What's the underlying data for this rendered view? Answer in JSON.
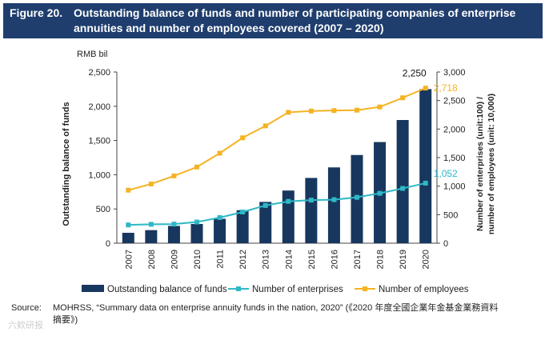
{
  "header": {
    "figure_number": "Figure 20.",
    "title_line1": "Outstanding balance of funds and number of participating companies of enterprise",
    "title_line2": "annuities and number of employees covered (2007 – 2020)"
  },
  "chart_data": {
    "type": "bar",
    "categories": [
      "2007",
      "2008",
      "2009",
      "2010",
      "2011",
      "2012",
      "2013",
      "2014",
      "2015",
      "2016",
      "2017",
      "2018",
      "2019",
      "2020"
    ],
    "series": [
      {
        "name": "Outstanding balance of funds",
        "kind": "bar",
        "axis": "left",
        "color": "#17375e",
        "values": [
          152,
          191,
          253,
          281,
          357,
          482,
          603,
          769,
          953,
          1107,
          1288,
          1477,
          1799,
          2250
        ]
      },
      {
        "name": "Number of enterprises",
        "kind": "line",
        "axis": "right",
        "color": "#2fb8c6",
        "values": [
          320,
          331,
          335,
          371,
          449,
          547,
          661,
          733,
          755,
          763,
          804,
          874,
          960,
          1052
        ]
      },
      {
        "name": "Number of employees",
        "kind": "line",
        "axis": "right",
        "color": "#f5b324",
        "values": [
          929,
          1038,
          1179,
          1335,
          1577,
          1847,
          2056,
          2293,
          2316,
          2325,
          2331,
          2388,
          2548,
          2718
        ]
      }
    ],
    "left_axis": {
      "unit_label": "RMB bil",
      "label": "Outstanding balance of funds",
      "min": 0,
      "max": 2500,
      "ticks": [
        "0",
        "500",
        "1,000",
        "1,500",
        "2,000",
        "2,500"
      ]
    },
    "right_axis": {
      "label_line1": "Number of enterprises (unit:100) /",
      "label_line2": "number of  employees (unit: 10,000)",
      "min": 0,
      "max": 3000,
      "ticks": [
        "0",
        "500",
        "1,000",
        "1,500",
        "2,000",
        "2,500",
        "3,000"
      ]
    },
    "data_labels": {
      "bar_last": "2,250",
      "employees_last": "2,718",
      "enterprises_last": "1,052"
    },
    "legend": {
      "position": "bottom",
      "items": [
        "Outstanding balance of funds",
        "Number of enterprises",
        "Number of employees"
      ]
    },
    "grid": false
  },
  "footer": {
    "source_label": "Source:",
    "source_line1": "MOHRSS, “Summary data on enterprise annuity funds in the nation, 2020” (《2020 年度全國企業年金基金業務資料",
    "source_line2": "摘要》)",
    "watermark": "六欸研报"
  }
}
